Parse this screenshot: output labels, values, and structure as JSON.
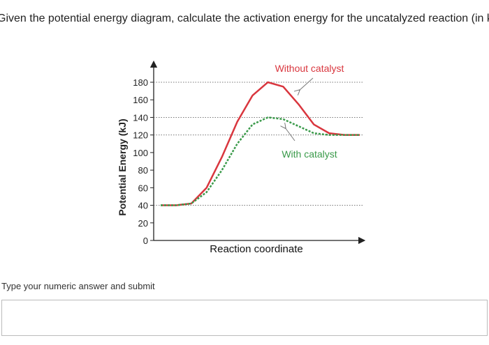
{
  "question": "Given the potential energy diagram, calculate the activation energy for the uncatalyzed reaction (in kJ)",
  "chart_data": {
    "type": "line",
    "ylabel": "Potential Energy (kJ)",
    "xlabel": "Reaction coordinate",
    "categories": [
      null,
      null,
      null,
      null,
      null,
      null,
      null,
      null,
      null,
      null,
      null,
      null,
      null,
      null
    ],
    "series": [
      {
        "name": "Without catalyst",
        "color": "#d9363e",
        "dashed": false,
        "values": [
          40,
          40,
          42,
          60,
          95,
          135,
          165,
          180,
          175,
          155,
          132,
          122,
          120,
          120
        ]
      },
      {
        "name": "With catalyst",
        "color": "#3a9a4a",
        "dashed": true,
        "values": [
          40,
          40,
          42,
          55,
          80,
          110,
          132,
          140,
          138,
          130,
          122,
          120,
          120,
          120
        ]
      }
    ],
    "ylim": [
      0,
      180
    ],
    "yticks": [
      0,
      20,
      40,
      60,
      80,
      100,
      120,
      140,
      160,
      180
    ],
    "gridlines": [
      40,
      120,
      140,
      180
    ]
  },
  "prompt": "Type your numeric answer and submit"
}
